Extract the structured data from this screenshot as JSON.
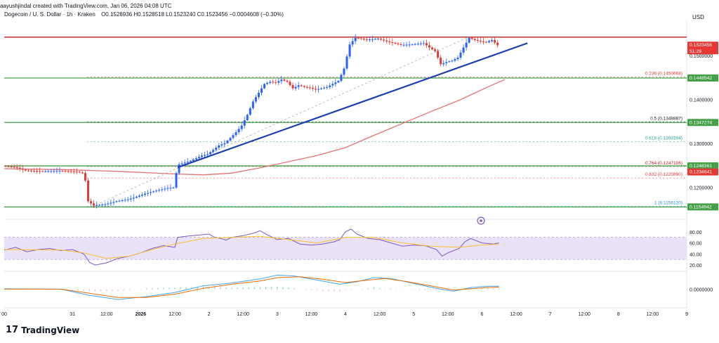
{
  "header": {
    "author": "aayushjindal created with TradingView.com, Jan 06, 2026 04:08 UTC",
    "symbol": "Dogecoin / U. S. Dollar · 1h · Kraken",
    "ohlc": "O0.1526936 H0.1528518 L0.1523240 C0.1523456 −0.0004608 (−0.30%)",
    "currency": "USD"
  },
  "branding": {
    "logo_text": "TradingView",
    "logo_mark": "17"
  },
  "chart_data": [
    {
      "type": "candlestick",
      "title": "Dogecoin / U. S. Dollar · 1h · Kraken",
      "ylim": [
        0.113,
        0.1575
      ],
      "y_ticks": [
        0.12,
        0.13,
        0.14,
        0.15
      ],
      "y_tick_labels": [
        "0.1200000",
        "0.1300000",
        "0.1400000",
        "0.1500000"
      ],
      "x_ticks": [
        {
          "t": 0,
          "label": "00"
        },
        {
          "t": 24,
          "label": "31"
        },
        {
          "t": 36,
          "label": "12:00"
        },
        {
          "t": 48,
          "label": "2026"
        },
        {
          "t": 60,
          "label": "12:00"
        },
        {
          "t": 72,
          "label": "2"
        },
        {
          "t": 84,
          "label": "12:00"
        },
        {
          "t": 96,
          "label": "3"
        },
        {
          "t": 108,
          "label": "12:00"
        },
        {
          "t": 120,
          "label": "4"
        },
        {
          "t": 132,
          "label": "12:00"
        },
        {
          "t": 144,
          "label": "5"
        },
        {
          "t": 156,
          "label": "12:00"
        },
        {
          "t": 168,
          "label": "6"
        },
        {
          "t": 180,
          "label": "12:00"
        },
        {
          "t": 192,
          "label": "7"
        },
        {
          "t": 204,
          "label": "12:00"
        },
        {
          "t": 216,
          "label": "8"
        },
        {
          "t": 228,
          "label": "12:00"
        },
        {
          "t": 240,
          "label": "9"
        }
      ],
      "price_path": [
        [
          0,
          0.1248
        ],
        [
          4,
          0.1246
        ],
        [
          8,
          0.1238
        ],
        [
          14,
          0.1236
        ],
        [
          20,
          0.1237
        ],
        [
          26,
          0.1235
        ],
        [
          28,
          0.1232
        ],
        [
          29,
          0.1215
        ],
        [
          30,
          0.1168
        ],
        [
          32,
          0.1158
        ],
        [
          36,
          0.1161
        ],
        [
          40,
          0.1168
        ],
        [
          44,
          0.1172
        ],
        [
          46,
          0.1176
        ],
        [
          50,
          0.1185
        ],
        [
          54,
          0.1192
        ],
        [
          58,
          0.1198
        ],
        [
          60,
          0.1199
        ],
        [
          61,
          0.1232
        ],
        [
          62,
          0.1252
        ],
        [
          66,
          0.126
        ],
        [
          70,
          0.1272
        ],
        [
          72,
          0.1275
        ],
        [
          74,
          0.1285
        ],
        [
          76,
          0.1295
        ],
        [
          78,
          0.13
        ],
        [
          80,
          0.1312
        ],
        [
          82,
          0.1325
        ],
        [
          84,
          0.134
        ],
        [
          86,
          0.1365
        ],
        [
          88,
          0.1395
        ],
        [
          90,
          0.1415
        ],
        [
          92,
          0.1435
        ],
        [
          94,
          0.144
        ],
        [
          96,
          0.1438
        ],
        [
          98,
          0.1445
        ],
        [
          100,
          0.144
        ],
        [
          102,
          0.1425
        ],
        [
          104,
          0.1432
        ],
        [
          106,
          0.1428
        ],
        [
          108,
          0.1426
        ],
        [
          110,
          0.1422
        ],
        [
          112,
          0.1425
        ],
        [
          114,
          0.1428
        ],
        [
          116,
          0.1435
        ],
        [
          118,
          0.1442
        ],
        [
          120,
          0.147
        ],
        [
          122,
          0.1525
        ],
        [
          124,
          0.154
        ],
        [
          128,
          0.1536
        ],
        [
          132,
          0.1538
        ],
        [
          136,
          0.153
        ],
        [
          140,
          0.1524
        ],
        [
          144,
          0.1525
        ],
        [
          148,
          0.1528
        ],
        [
          150,
          0.1518
        ],
        [
          152,
          0.151
        ],
        [
          154,
          0.148
        ],
        [
          156,
          0.1485
        ],
        [
          158,
          0.1488
        ],
        [
          160,
          0.1495
        ],
        [
          162,
          0.1518
        ],
        [
          164,
          0.154
        ],
        [
          166,
          0.1535
        ],
        [
          168,
          0.1532
        ],
        [
          170,
          0.153
        ],
        [
          172,
          0.1535
        ],
        [
          174,
          0.1523
        ]
      ],
      "moving_average": [
        [
          0,
          0.1242
        ],
        [
          20,
          0.124
        ],
        [
          40,
          0.1236
        ],
        [
          60,
          0.123
        ],
        [
          70,
          0.1228
        ],
        [
          80,
          0.1232
        ],
        [
          90,
          0.1244
        ],
        [
          100,
          0.1258
        ],
        [
          110,
          0.1272
        ],
        [
          120,
          0.129
        ],
        [
          130,
          0.1318
        ],
        [
          140,
          0.1345
        ],
        [
          150,
          0.1372
        ],
        [
          160,
          0.1398
        ],
        [
          170,
          0.1428
        ],
        [
          176,
          0.1445
        ]
      ],
      "trendline": {
        "from": [
          61,
          0.1245
        ],
        "to": [
          184,
          0.1528
        ]
      },
      "horizontal_levels": [
        {
          "value": 0.1541654,
          "color": "#b71c1c",
          "label": "0 (0.1541654)"
        },
        {
          "value": 0.1448542,
          "color": "#43a047",
          "label": "0.1448542"
        },
        {
          "value": 0.1347274,
          "color": "#43a047",
          "label": "0.1347274"
        },
        {
          "value": 0.1248361,
          "color": "#43a047",
          "label": "0.1248361"
        },
        {
          "value": 0.1154942,
          "color": "#43a047",
          "label": "0.1154942"
        }
      ],
      "fib_levels": [
        {
          "value": 0.1450668,
          "label": "0.236 (0.1450668)",
          "color": "#e53935"
        },
        {
          "value": 0.1348887,
          "label": "0.5 (0.1348887)",
          "color": "#131722"
        },
        {
          "value": 0.1303394,
          "label": "0.618 (0.1303394)",
          "color": "#26a69a"
        },
        {
          "value": 0.1247106,
          "label": "0.764 (0.1247106)",
          "color": "#b71c1c"
        },
        {
          "value": 0.122089,
          "label": "0.832 (0.1220890)",
          "color": "#e53935"
        },
        {
          "value": 0.115612,
          "label": "1 (0.1156120)",
          "color": "#1e88e5"
        }
      ],
      "price_tags": [
        {
          "value": 0.1523456,
          "label": "0.1523456",
          "sublabel": "51:29",
          "bg": "#e53935"
        },
        {
          "value": 0.1448542,
          "label": "0.1448542",
          "bg": "#43a047"
        },
        {
          "value": 0.1347274,
          "label": "0.1347274",
          "bg": "#43a047"
        },
        {
          "value": 0.1248361,
          "label": "0.1248361",
          "bg": "#43a047"
        },
        {
          "value": 0.1234641,
          "label": "0.1234641",
          "bg": "#e53935"
        },
        {
          "value": 0.1154942,
          "label": "0.1154942",
          "bg": "#43a047"
        }
      ],
      "colors": {
        "up": "#2962ff",
        "down": "#e53935",
        "ma": "#e57373",
        "trend": "#1a3fb0",
        "fib_dash": "#b0b0b0"
      }
    },
    {
      "type": "line",
      "title": "",
      "ylim": [
        10,
        95
      ],
      "y_ticks": [
        20,
        40,
        60,
        80
      ],
      "y_tick_labels": [
        "20.00",
        "40.00",
        "60.00",
        "80.00"
      ],
      "band": [
        30,
        70
      ],
      "series": [
        {
          "color": "#7e57c2",
          "values": [
            [
              0,
              47
            ],
            [
              4,
              52
            ],
            [
              8,
              44
            ],
            [
              12,
              48
            ],
            [
              16,
              50
            ],
            [
              20,
              46
            ],
            [
              24,
              48
            ],
            [
              28,
              40
            ],
            [
              30,
              25
            ],
            [
              32,
              20
            ],
            [
              36,
              24
            ],
            [
              40,
              32
            ],
            [
              44,
              36
            ],
            [
              48,
              42
            ],
            [
              52,
              50
            ],
            [
              56,
              55
            ],
            [
              60,
              52
            ],
            [
              61,
              70
            ],
            [
              64,
              72
            ],
            [
              68,
              74
            ],
            [
              72,
              76
            ],
            [
              74,
              70
            ],
            [
              76,
              68
            ],
            [
              78,
              65
            ],
            [
              80,
              70
            ],
            [
              84,
              73
            ],
            [
              88,
              78
            ],
            [
              90,
              82
            ],
            [
              92,
              76
            ],
            [
              96,
              66
            ],
            [
              100,
              68
            ],
            [
              104,
              58
            ],
            [
              108,
              56
            ],
            [
              112,
              58
            ],
            [
              116,
              62
            ],
            [
              118,
              66
            ],
            [
              120,
              80
            ],
            [
              122,
              85
            ],
            [
              124,
              76
            ],
            [
              128,
              68
            ],
            [
              132,
              66
            ],
            [
              136,
              60
            ],
            [
              140,
              54
            ],
            [
              144,
              56
            ],
            [
              148,
              55
            ],
            [
              152,
              48
            ],
            [
              154,
              36
            ],
            [
              156,
              42
            ],
            [
              158,
              46
            ],
            [
              160,
              50
            ],
            [
              162,
              62
            ],
            [
              164,
              68
            ],
            [
              168,
              60
            ],
            [
              172,
              58
            ],
            [
              174,
              60
            ]
          ]
        },
        {
          "color": "#fbc02d",
          "values": [
            [
              0,
              48
            ],
            [
              20,
              47
            ],
            [
              28,
              42
            ],
            [
              36,
              32
            ],
            [
              44,
              36
            ],
            [
              52,
              48
            ],
            [
              60,
              58
            ],
            [
              70,
              68
            ],
            [
              80,
              70
            ],
            [
              90,
              72
            ],
            [
              100,
              66
            ],
            [
              110,
              60
            ],
            [
              120,
              70
            ],
            [
              130,
              70
            ],
            [
              140,
              60
            ],
            [
              150,
              54
            ],
            [
              160,
              52
            ],
            [
              168,
              56
            ],
            [
              174,
              58
            ]
          ]
        }
      ]
    },
    {
      "type": "line",
      "title": "",
      "ylim": [
        -0.0035,
        0.0045
      ],
      "y_ticks": [
        0
      ],
      "y_tick_labels": [
        "0.0000000"
      ],
      "histogram_color": "#80cbc4",
      "series": [
        {
          "color": "#42a5f5",
          "values": [
            [
              0,
              0.0001
            ],
            [
              20,
              0.0
            ],
            [
              30,
              -0.0015
            ],
            [
              40,
              -0.0025
            ],
            [
              50,
              -0.0018
            ],
            [
              60,
              -0.0008
            ],
            [
              70,
              0.0008
            ],
            [
              80,
              0.0015
            ],
            [
              90,
              0.0025
            ],
            [
              96,
              0.0034
            ],
            [
              102,
              0.0032
            ],
            [
              110,
              0.0022
            ],
            [
              118,
              0.0012
            ],
            [
              124,
              0.0018
            ],
            [
              130,
              0.0028
            ],
            [
              136,
              0.0026
            ],
            [
              144,
              0.0014
            ],
            [
              152,
              0.0002
            ],
            [
              158,
              -0.0005
            ],
            [
              164,
              0.0004
            ],
            [
              170,
              0.0007
            ],
            [
              174,
              0.0007
            ]
          ]
        },
        {
          "color": "#ef6c00",
          "values": [
            [
              0,
              0.0
            ],
            [
              20,
              0.0
            ],
            [
              30,
              -0.001
            ],
            [
              40,
              -0.002
            ],
            [
              50,
              -0.002
            ],
            [
              60,
              -0.0012
            ],
            [
              70,
              0.0002
            ],
            [
              80,
              0.0012
            ],
            [
              90,
              0.002
            ],
            [
              96,
              0.0028
            ],
            [
              104,
              0.003
            ],
            [
              112,
              0.0024
            ],
            [
              120,
              0.0016
            ],
            [
              128,
              0.0022
            ],
            [
              134,
              0.0026
            ],
            [
              142,
              0.0018
            ],
            [
              150,
              0.0008
            ],
            [
              158,
              -0.0002
            ],
            [
              164,
              0.0001
            ],
            [
              170,
              0.0004
            ],
            [
              174,
              0.0005
            ]
          ]
        }
      ]
    }
  ]
}
